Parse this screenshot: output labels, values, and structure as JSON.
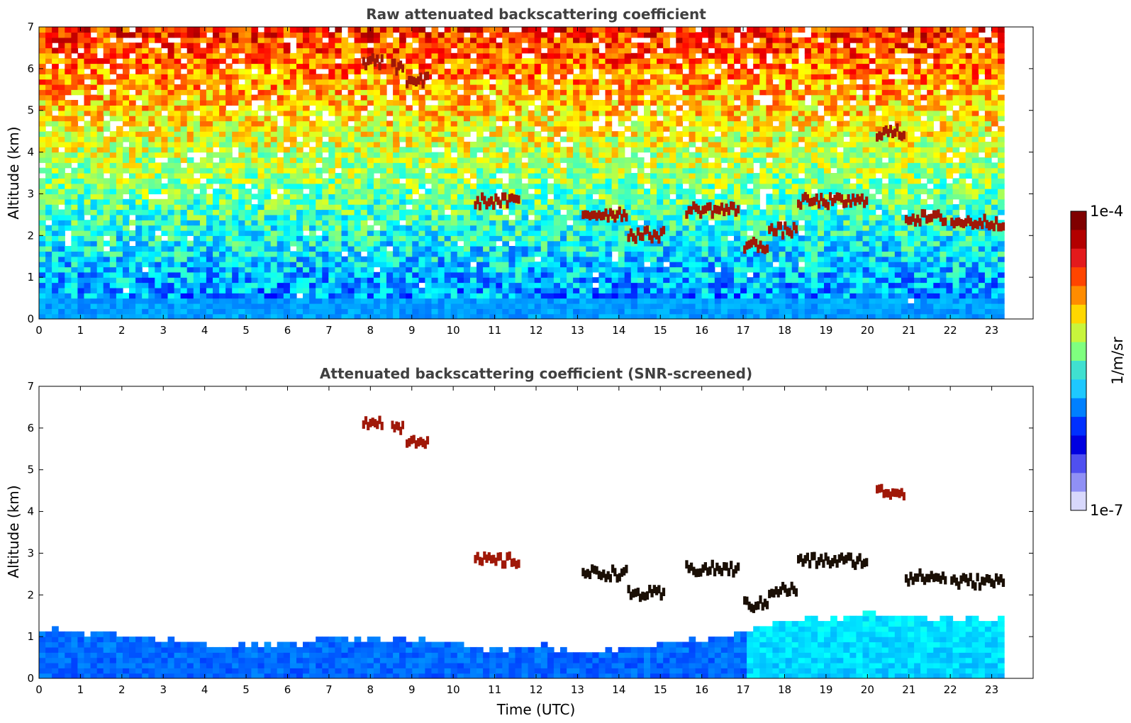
{
  "figure": {
    "xlabel": "Time (UTC)"
  },
  "colorbar": {
    "label": "1/m/sr",
    "top_label": "1e-4",
    "bottom_label": "1e-7",
    "colors": [
      "#7f0000",
      "#b30000",
      "#e31a1c",
      "#ff4500",
      "#ff8c00",
      "#ffd700",
      "#c8f53c",
      "#7fff7f",
      "#40e0d0",
      "#1ec8ff",
      "#0080ff",
      "#0030ff",
      "#0000e0",
      "#5050f0",
      "#9090f5",
      "#d8d8fc"
    ]
  },
  "chart_data": [
    {
      "type": "heatmap",
      "title": "Raw attenuated backscattering coefficient",
      "xlabel": "",
      "ylabel": "Altitude (km)",
      "xlim": [
        0,
        24
      ],
      "ylim": [
        0,
        7
      ],
      "xticks": [
        "0",
        "1",
        "2",
        "3",
        "4",
        "5",
        "6",
        "7",
        "8",
        "9",
        "10",
        "11",
        "12",
        "13",
        "14",
        "15",
        "16",
        "17",
        "18",
        "19",
        "20",
        "21",
        "22",
        "23"
      ],
      "yticks": [
        "0",
        "1",
        "2",
        "3",
        "4",
        "5",
        "6",
        "7"
      ],
      "data_end_time": 23.3,
      "colorscale": "jet",
      "cloud_layers": [
        {
          "t_start": 7.8,
          "t_end": 8.3,
          "altitude": 6.15
        },
        {
          "t_start": 8.5,
          "t_end": 8.8,
          "altitude": 6.0
        },
        {
          "t_start": 8.85,
          "t_end": 9.4,
          "altitude": 5.7
        },
        {
          "t_start": 10.5,
          "t_end": 11.6,
          "altitude": 2.8
        },
        {
          "t_start": 13.1,
          "t_end": 14.2,
          "altitude": 2.5
        },
        {
          "t_start": 14.2,
          "t_end": 15.1,
          "altitude": 2.0
        },
        {
          "t_start": 15.6,
          "t_end": 16.9,
          "altitude": 2.6
        },
        {
          "t_start": 17.0,
          "t_end": 17.6,
          "altitude": 1.75
        },
        {
          "t_start": 17.6,
          "t_end": 18.3,
          "altitude": 2.1
        },
        {
          "t_start": 18.3,
          "t_end": 20.0,
          "altitude": 2.8
        },
        {
          "t_start": 20.2,
          "t_end": 20.9,
          "altitude": 4.45
        },
        {
          "t_start": 20.9,
          "t_end": 21.9,
          "altitude": 2.4
        },
        {
          "t_start": 22.0,
          "t_end": 23.3,
          "altitude": 2.3
        }
      ]
    },
    {
      "type": "heatmap",
      "title": "Attenuated backscattering coefficient (SNR-screened)",
      "xlabel": "Time (UTC)",
      "ylabel": "Altitude (km)",
      "xlim": [
        0,
        24
      ],
      "ylim": [
        0,
        7
      ],
      "xticks": [
        "0",
        "1",
        "2",
        "3",
        "4",
        "5",
        "6",
        "7",
        "8",
        "9",
        "10",
        "11",
        "12",
        "13",
        "14",
        "15",
        "16",
        "17",
        "18",
        "19",
        "20",
        "21",
        "22",
        "23"
      ],
      "yticks": [
        "0",
        "1",
        "2",
        "3",
        "4",
        "5",
        "6",
        "7"
      ],
      "data_end_time": 23.3,
      "colorscale": "jet",
      "boundary_layer_top_km": [
        [
          0,
          1.1
        ],
        [
          1,
          1.05
        ],
        [
          2,
          0.95
        ],
        [
          3,
          0.85
        ],
        [
          4,
          0.75
        ],
        [
          5,
          0.7
        ],
        [
          6,
          0.75
        ],
        [
          7,
          0.95
        ],
        [
          8,
          0.9
        ],
        [
          9,
          0.85
        ],
        [
          10,
          0.8
        ],
        [
          11,
          0.6
        ],
        [
          12,
          0.75
        ],
        [
          13,
          0.55
        ],
        [
          14,
          0.65
        ],
        [
          15,
          0.8
        ],
        [
          16,
          0.85
        ],
        [
          17,
          1.1
        ],
        [
          18,
          1.3
        ],
        [
          19,
          1.4
        ],
        [
          20,
          1.5
        ],
        [
          21,
          1.4
        ],
        [
          22,
          1.35
        ],
        [
          23,
          1.35
        ]
      ]
    }
  ]
}
